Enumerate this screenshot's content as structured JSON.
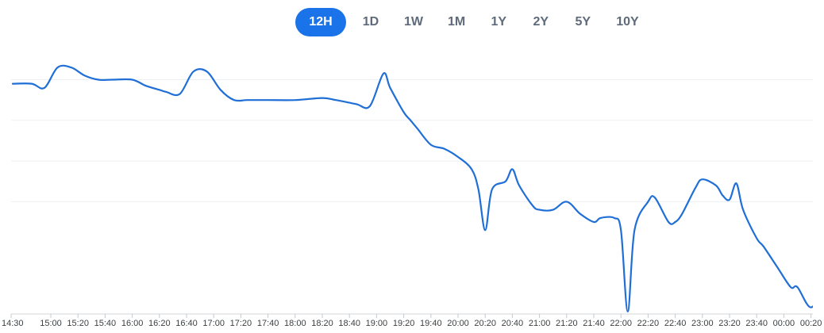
{
  "range_selector": {
    "options": [
      "12H",
      "1D",
      "1W",
      "1M",
      "1Y",
      "2Y",
      "5Y",
      "10Y"
    ],
    "selected": "12H"
  },
  "chart_data": {
    "type": "line",
    "title": "",
    "xlabel": "",
    "ylabel": "",
    "grid": true,
    "line_color": "#1f6fd6",
    "x_ticks": [
      "14:30",
      "15:00",
      "15:20",
      "15:40",
      "16:00",
      "16:20",
      "16:40",
      "17:00",
      "17:20",
      "17:40",
      "18:00",
      "18:20",
      "18:40",
      "19:00",
      "19:20",
      "19:40",
      "20:00",
      "20:20",
      "20:40",
      "21:00",
      "21:20",
      "21:40",
      "22:00",
      "22:20",
      "22:40",
      "23:00",
      "23:20",
      "23:40",
      "00:00",
      "00:20"
    ],
    "x": [
      "14:30",
      "14:45",
      "14:55",
      "15:05",
      "15:15",
      "15:25",
      "15:35",
      "15:45",
      "16:00",
      "16:10",
      "16:20",
      "16:25",
      "16:35",
      "16:45",
      "16:55",
      "17:05",
      "17:15",
      "17:25",
      "17:40",
      "18:00",
      "18:20",
      "18:30",
      "18:45",
      "18:55",
      "19:05",
      "19:10",
      "19:20",
      "19:25",
      "19:30",
      "19:40",
      "19:50",
      "20:00",
      "20:10",
      "20:15",
      "20:20",
      "20:25",
      "20:35",
      "20:40",
      "20:45",
      "20:55",
      "21:00",
      "21:10",
      "21:20",
      "21:30",
      "21:40",
      "21:45",
      "21:55",
      "22:00",
      "22:05",
      "22:10",
      "22:20",
      "22:25",
      "22:35",
      "22:40",
      "22:45",
      "22:55",
      "23:00",
      "23:10",
      "23:15",
      "23:20",
      "23:25",
      "23:30",
      "23:40",
      "23:45",
      "23:55",
      "24:05",
      "24:10",
      "24:20",
      "24:30"
    ],
    "y": [
      94.5,
      94.5,
      94.4,
      94.9,
      94.9,
      94.7,
      94.6,
      94.6,
      94.6,
      94.45,
      94.35,
      94.3,
      94.25,
      94.8,
      94.8,
      94.35,
      94.1,
      94.1,
      94.1,
      94.1,
      94.15,
      94.1,
      94.0,
      93.95,
      94.75,
      94.4,
      93.8,
      93.6,
      93.4,
      93.0,
      92.9,
      92.7,
      92.4,
      91.9,
      90.9,
      91.9,
      92.1,
      92.4,
      92.0,
      91.5,
      91.4,
      91.4,
      91.6,
      91.3,
      91.1,
      91.2,
      91.2,
      90.9,
      88.9,
      90.9,
      91.6,
      91.7,
      91.1,
      91.1,
      91.3,
      91.95,
      92.15,
      92.0,
      91.75,
      91.65,
      92.05,
      91.4,
      90.7,
      90.5,
      90.0,
      89.5,
      89.5,
      89.0,
      89.5
    ]
  }
}
